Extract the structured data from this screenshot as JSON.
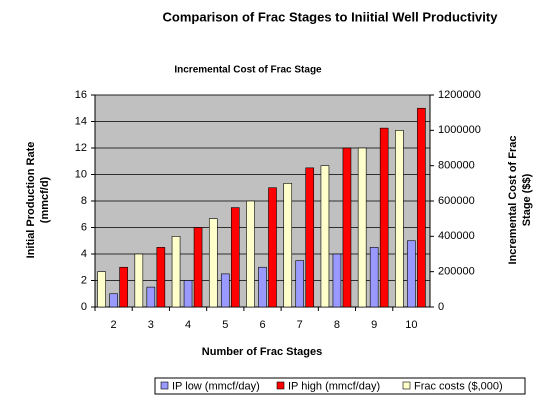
{
  "chart_data": {
    "type": "bar",
    "title": "Comparison of Frac Stages to Iniitial Well Productivity",
    "subtitle": "Incremental Cost of Frac Stage",
    "xlabel": "Number of Frac Stages",
    "ylabel": [
      "Initial Production Rate",
      "(mmcf/d)"
    ],
    "y2label": [
      "Incremental Cost of Frac",
      "Stage ($$)"
    ],
    "categories": [
      "2",
      "3",
      "4",
      "5",
      "6",
      "7",
      "8",
      "9",
      "10"
    ],
    "series": [
      {
        "name": "IP low (mmcf/day)",
        "color": "#9999ff",
        "values": [
          1,
          1.5,
          2,
          2.5,
          3,
          3.5,
          4,
          4.5,
          5
        ]
      },
      {
        "name": "IP high (mmcf/day)",
        "color": "#ff0000",
        "values": [
          3,
          4.5,
          6,
          7.5,
          9,
          10.5,
          12,
          13.5,
          15
        ]
      },
      {
        "name": "Frac costs ($,000)",
        "color": "#ffffcc",
        "axis": "y2",
        "values": [
          200000,
          300000,
          400000,
          500000,
          600000,
          700000,
          800000,
          900000,
          1000000
        ]
      }
    ],
    "ylim": [
      0,
      16
    ],
    "yticks": [
      0,
      2,
      4,
      6,
      8,
      10,
      12,
      14,
      16
    ],
    "y2lim": [
      0,
      1200000
    ],
    "y2ticks": [
      0,
      200000,
      400000,
      600000,
      800000,
      1000000,
      1200000
    ],
    "grid": true,
    "legend": "bottom"
  }
}
